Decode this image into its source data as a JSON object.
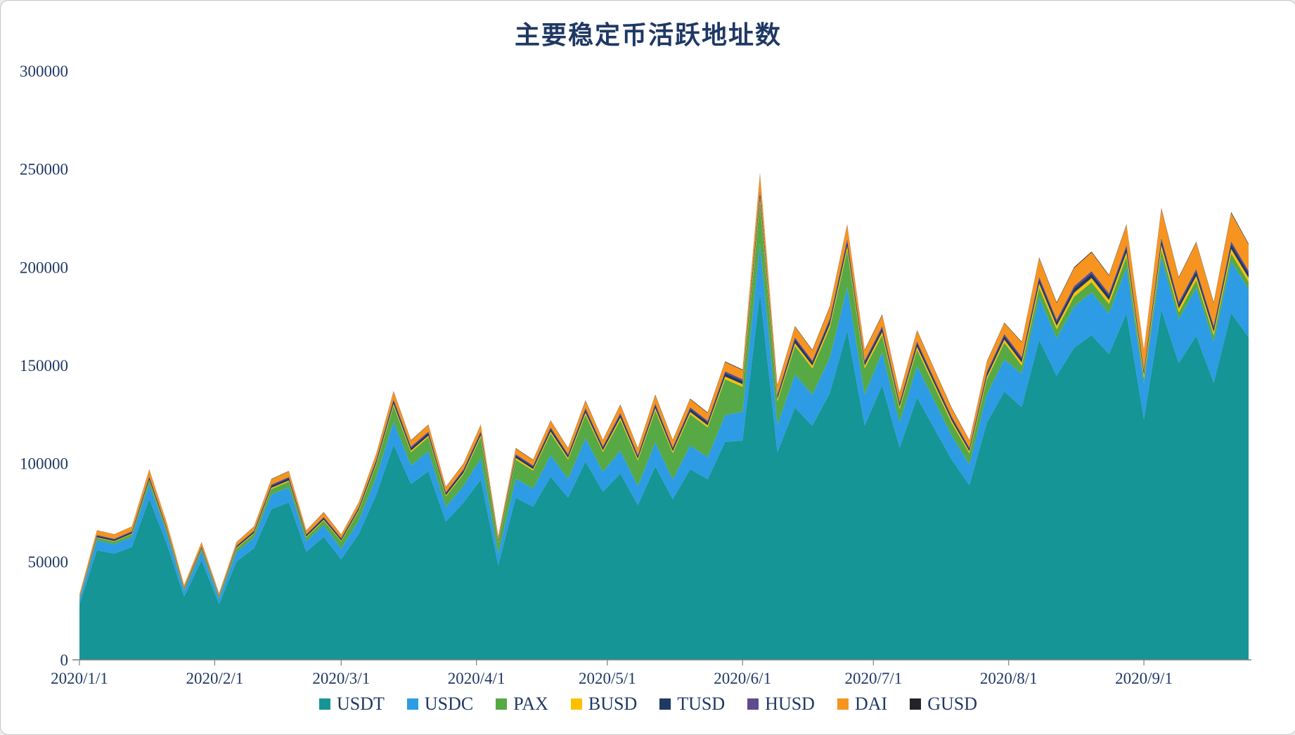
{
  "chart": {
    "title": "主要稳定币活跃地址数"
  },
  "chart_data": {
    "type": "area",
    "stacked": true,
    "title": "主要稳定币活跃地址数",
    "xlabel": "",
    "ylabel": "",
    "grid": false,
    "legend_position": "bottom",
    "ylim": [
      0,
      300000
    ],
    "ytick_interval": 50000,
    "yticks": [
      "0",
      "50000",
      "100000",
      "150000",
      "200000",
      "250000",
      "300000"
    ],
    "xticks": [
      "2020/1/1",
      "2020/2/1",
      "2020/3/1",
      "2020/4/1",
      "2020/5/1",
      "2020/6/1",
      "2020/7/1",
      "2020/8/1",
      "2020/9/1"
    ],
    "text_color": "#1F3864",
    "x": [
      "2020/1/1",
      "2020/1/5",
      "2020/1/9",
      "2020/1/13",
      "2020/1/17",
      "2020/1/21",
      "2020/1/25",
      "2020/1/29",
      "2020/2/2",
      "2020/2/6",
      "2020/2/10",
      "2020/2/14",
      "2020/2/18",
      "2020/2/22",
      "2020/2/26",
      "2020/3/1",
      "2020/3/5",
      "2020/3/9",
      "2020/3/13",
      "2020/3/17",
      "2020/3/21",
      "2020/3/25",
      "2020/3/29",
      "2020/4/2",
      "2020/4/6",
      "2020/4/10",
      "2020/4/14",
      "2020/4/18",
      "2020/4/22",
      "2020/4/26",
      "2020/4/30",
      "2020/5/4",
      "2020/5/8",
      "2020/5/12",
      "2020/5/16",
      "2020/5/20",
      "2020/5/24",
      "2020/5/28",
      "2020/6/1",
      "2020/6/5",
      "2020/6/9",
      "2020/6/13",
      "2020/6/17",
      "2020/6/21",
      "2020/6/25",
      "2020/6/29",
      "2020/7/3",
      "2020/7/7",
      "2020/7/11",
      "2020/7/15",
      "2020/7/19",
      "2020/7/23",
      "2020/7/27",
      "2020/7/31",
      "2020/8/4",
      "2020/8/8",
      "2020/8/12",
      "2020/8/16",
      "2020/8/20",
      "2020/8/24",
      "2020/8/28",
      "2020/9/1",
      "2020/9/5",
      "2020/9/9",
      "2020/9/13",
      "2020/9/17",
      "2020/9/21",
      "2020/9/25"
    ],
    "series": [
      {
        "name": "USDT",
        "color": "#159595",
        "values": [
          28000,
          55800,
          54100,
          57500,
          82000,
          59200,
          32100,
          50700,
          28400,
          50100,
          56800,
          76800,
          80200,
          55100,
          62600,
          51200,
          64000,
          84000,
          109600,
          89600,
          96000,
          70400,
          80000,
          91800,
          48200,
          82600,
          78000,
          93300,
          82600,
          101000,
          85700,
          94900,
          78800,
          98600,
          81800,
          97100,
          92000,
          111000,
          111700,
          187200,
          105700,
          128400,
          119300,
          135900,
          167600,
          119300,
          139900,
          108100,
          133600,
          117700,
          101800,
          89000,
          120800,
          136700,
          128800,
          163000,
          144700,
          159000,
          165400,
          155800,
          176500,
          122500,
          178300,
          151100,
          165100,
          141100,
          176700,
          164300
        ]
      },
      {
        "name": "USDC",
        "color": "#2D9CE5",
        "values": [
          2500,
          5000,
          4800,
          5100,
          7300,
          5300,
          2900,
          4500,
          2700,
          4800,
          5400,
          7400,
          7700,
          5300,
          6000,
          5400,
          6800,
          8900,
          11600,
          9500,
          10200,
          7500,
          8500,
          10800,
          5700,
          9700,
          9200,
          11000,
          9700,
          11900,
          10100,
          11700,
          9700,
          12200,
          10100,
          12000,
          11300,
          13700,
          14800,
          24800,
          14000,
          17000,
          15800,
          18000,
          22200,
          15800,
          16700,
          12900,
          16000,
          14100,
          12200,
          10600,
          14400,
          16300,
          17000,
          21500,
          19100,
          21000,
          21800,
          20600,
          23300,
          18200,
          26500,
          22400,
          24500,
          20900,
          26200,
          24400
        ]
      },
      {
        "name": "PAX",
        "color": "#56A944",
        "values": [
          700,
          1300,
          1300,
          1400,
          1900,
          1400,
          800,
          1200,
          1000,
          1800,
          2000,
          2800,
          2900,
          2000,
          2300,
          3800,
          4800,
          6300,
          8200,
          6700,
          7200,
          5300,
          6000,
          10800,
          5700,
          9700,
          9200,
          11000,
          9700,
          11900,
          10100,
          15600,
          13000,
          16200,
          13400,
          16000,
          15100,
          18200,
          12600,
          21100,
          11900,
          14500,
          13400,
          15300,
          18900,
          13400,
          8800,
          6800,
          8400,
          7400,
          6400,
          5600,
          7600,
          8600,
          4100,
          5100,
          4600,
          5000,
          5200,
          4900,
          5600,
          2800,
          4100,
          3500,
          3800,
          3300,
          4100,
          3800
        ]
      },
      {
        "name": "BUSD",
        "color": "#FFC000",
        "values": [
          200,
          300,
          300,
          300,
          500,
          400,
          200,
          300,
          200,
          400,
          400,
          600,
          600,
          400,
          500,
          400,
          600,
          700,
          1000,
          800,
          800,
          600,
          700,
          1000,
          500,
          900,
          800,
          1000,
          900,
          1100,
          900,
          1200,
          1000,
          1200,
          1000,
          1200,
          1100,
          1400,
          1300,
          2200,
          1300,
          1500,
          1400,
          1600,
          2000,
          1400,
          1600,
          1200,
          1500,
          1300,
          1200,
          1000,
          1400,
          1500,
          1600,
          2100,
          1800,
          2000,
          2100,
          2000,
          2200,
          1600,
          2300,
          2000,
          2100,
          1800,
          2300,
          2100
        ]
      },
      {
        "name": "TUSD",
        "color": "#1F3864",
        "values": [
          400,
          800,
          800,
          800,
          1200,
          800,
          500,
          700,
          400,
          700,
          800,
          1100,
          1200,
          800,
          900,
          800,
          1000,
          1300,
          1600,
          1300,
          1400,
          1100,
          1200,
          1400,
          800,
          1300,
          1200,
          1500,
          1300,
          1600,
          1300,
          1600,
          1300,
          1600,
          1300,
          1600,
          1500,
          1800,
          1600,
          2700,
          1500,
          1900,
          1700,
          2000,
          2400,
          1700,
          1900,
          1500,
          1800,
          1600,
          1400,
          1200,
          1700,
          1900,
          1800,
          2300,
          2000,
          2200,
          2300,
          2200,
          2400,
          1700,
          2500,
          2100,
          2300,
          2000,
          2500,
          2300
        ]
      },
      {
        "name": "HUSD",
        "color": "#5E4B8B",
        "values": [
          200,
          400,
          400,
          400,
          600,
          400,
          200,
          400,
          200,
          400,
          400,
          600,
          600,
          400,
          500,
          400,
          500,
          600,
          800,
          700,
          700,
          500,
          600,
          700,
          400,
          600,
          600,
          700,
          600,
          800,
          700,
          800,
          600,
          800,
          700,
          800,
          800,
          900,
          900,
          1500,
          800,
          1000,
          900,
          1100,
          1300,
          900,
          1100,
          800,
          1000,
          900,
          800,
          700,
          900,
          1000,
          1000,
          1200,
          1100,
          1200,
          1200,
          1200,
          1300,
          900,
          1400,
          1200,
          1300,
          1100,
          1400,
          1300
        ]
      },
      {
        "name": "DAI",
        "color": "#F79420",
        "values": [
          1200,
          2300,
          2200,
          2400,
          3400,
          2500,
          1300,
          2100,
          1000,
          1700,
          2000,
          2700,
          2800,
          1900,
          2200,
          1800,
          2200,
          2900,
          3800,
          3100,
          3400,
          2500,
          2800,
          3200,
          1700,
          2900,
          2800,
          3300,
          2900,
          3600,
          3000,
          4000,
          3300,
          4200,
          3500,
          4100,
          3900,
          4700,
          4700,
          7900,
          4500,
          5400,
          5100,
          5800,
          7100,
          5100,
          5600,
          4400,
          5400,
          4700,
          4100,
          3600,
          4900,
          5500,
          7500,
          9400,
          8400,
          9200,
          9600,
          9000,
          10200,
          10000,
          14500,
          12300,
          13400,
          11500,
          14400,
          13400
        ]
      },
      {
        "name": "GUSD",
        "color": "#23242A",
        "values": [
          100,
          100,
          100,
          100,
          200,
          100,
          100,
          100,
          100,
          100,
          100,
          200,
          200,
          100,
          200,
          100,
          200,
          200,
          300,
          200,
          200,
          200,
          200,
          200,
          100,
          200,
          200,
          200,
          200,
          300,
          200,
          300,
          200,
          300,
          200,
          300,
          300,
          300,
          300,
          500,
          300,
          300,
          300,
          400,
          400,
          300,
          400,
          300,
          300,
          300,
          300,
          200,
          300,
          300,
          300,
          400,
          400,
          400,
          400,
          400,
          400,
          300,
          500,
          400,
          400,
          400,
          500,
          400
        ]
      }
    ]
  }
}
